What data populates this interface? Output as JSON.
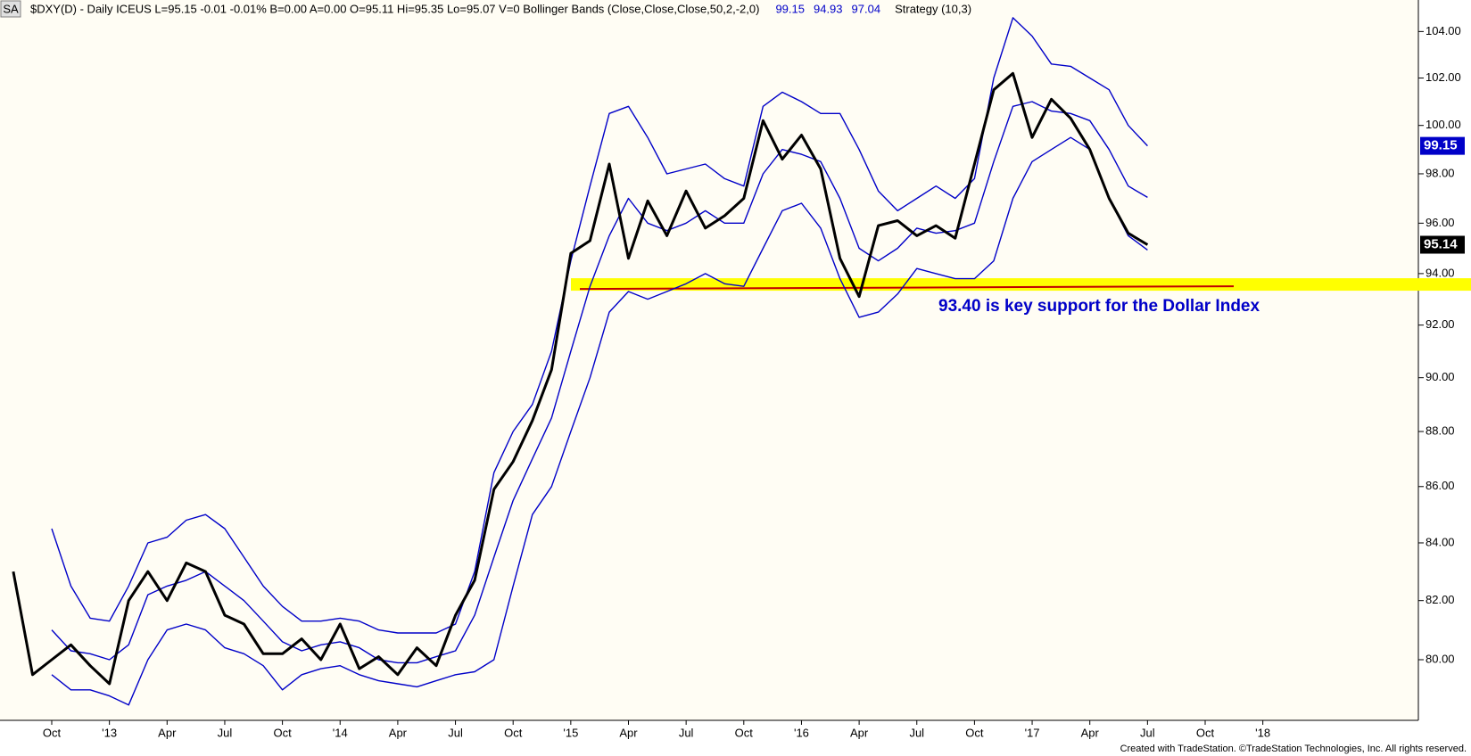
{
  "chart_data": {
    "type": "line",
    "symbol_box": "SA",
    "title": "$DXY(D) - Daily ICEUS  L=95.15  -0.01  -0.01%  B=0.00  A=0.00  O=95.11  Hi=95.35  Lo=95.07  V=0  Bollinger Bands (Close,Close,Close,50,2,-2,0)",
    "strategy": "Strategy (10,3)",
    "footer": "Created with TradeStation. ©TradeStation Technologies, Inc. All rights reserved.",
    "log_scale": true,
    "x": [
      "2012-08",
      "2012-09",
      "2012-10",
      "2012-11",
      "2012-12",
      "2013-01",
      "2013-02",
      "2013-03",
      "2013-04",
      "2013-05",
      "2013-06",
      "2013-07",
      "2013-08",
      "2013-09",
      "2013-10",
      "2013-11",
      "2013-12",
      "2014-01",
      "2014-02",
      "2014-03",
      "2014-04",
      "2014-05",
      "2014-06",
      "2014-07",
      "2014-08",
      "2014-09",
      "2014-10",
      "2014-11",
      "2014-12",
      "2015-01",
      "2015-02",
      "2015-03",
      "2015-04",
      "2015-05",
      "2015-06",
      "2015-07",
      "2015-08",
      "2015-09",
      "2015-10",
      "2015-11",
      "2015-12",
      "2016-01",
      "2016-02",
      "2016-03",
      "2016-04",
      "2016-05",
      "2016-06",
      "2016-07",
      "2016-08",
      "2016-09",
      "2016-10",
      "2016-11",
      "2016-12",
      "2017-01",
      "2017-02",
      "2017-03",
      "2017-04",
      "2017-05",
      "2017-06",
      "2017-07"
    ],
    "series": [
      {
        "name": "Upper",
        "color": "#0000c8",
        "values": [
          null,
          null,
          84.5,
          82.5,
          81.4,
          81.3,
          82.5,
          84.0,
          84.2,
          84.8,
          85.0,
          84.5,
          83.5,
          82.5,
          81.8,
          81.3,
          81.3,
          81.4,
          81.3,
          81.0,
          80.9,
          80.9,
          80.9,
          81.2,
          83.0,
          86.5,
          88.0,
          89.0,
          91.0,
          94.5,
          97.5,
          100.5,
          100.8,
          99.5,
          98.0,
          98.2,
          98.4,
          97.8,
          97.5,
          100.8,
          101.4,
          101.0,
          100.5,
          100.5,
          99.0,
          97.3,
          96.5,
          97.0,
          97.5,
          97.0,
          97.8,
          102.0,
          104.6,
          103.8,
          102.6,
          102.5,
          102.0,
          101.5,
          100.0,
          99.15
        ]
      },
      {
        "name": "Lower",
        "color": "#0000c8",
        "values": [
          null,
          null,
          79.5,
          79.0,
          79.0,
          78.8,
          78.5,
          80.0,
          81.0,
          81.2,
          81.0,
          80.4,
          80.2,
          79.8,
          79.0,
          79.5,
          79.7,
          79.8,
          79.5,
          79.3,
          79.2,
          79.1,
          79.3,
          79.5,
          79.6,
          80.0,
          82.5,
          85.0,
          86.0,
          88.0,
          90.0,
          92.5,
          93.3,
          93.0,
          93.3,
          93.6,
          94.0,
          93.6,
          93.5,
          95.0,
          96.5,
          96.8,
          95.8,
          93.8,
          92.3,
          92.5,
          93.2,
          94.2,
          94.0,
          93.8,
          93.8,
          94.5,
          97.0,
          98.5,
          99.0,
          99.5,
          99.0,
          97.0,
          95.5,
          94.93
        ]
      },
      {
        "name": "Mid",
        "color": "#0000c8",
        "values": [
          null,
          null,
          81.0,
          80.3,
          80.2,
          80.0,
          80.5,
          82.2,
          82.5,
          82.7,
          83.0,
          82.5,
          82.0,
          81.3,
          80.6,
          80.3,
          80.5,
          80.6,
          80.4,
          80.0,
          79.9,
          79.9,
          80.1,
          80.3,
          81.5,
          83.5,
          85.5,
          87.0,
          88.5,
          91.0,
          93.5,
          95.5,
          97.0,
          96.0,
          95.7,
          96.0,
          96.5,
          96.0,
          96.0,
          98.0,
          99.0,
          98.8,
          98.5,
          97.0,
          95.0,
          94.5,
          95.0,
          95.8,
          95.6,
          95.7,
          96.0,
          98.5,
          100.8,
          101.0,
          100.6,
          100.5,
          100.2,
          99.0,
          97.5,
          97.04
        ]
      },
      {
        "name": "$DXY",
        "color": "#000000",
        "values": [
          83.0,
          79.5,
          80.0,
          80.5,
          79.8,
          79.2,
          82.0,
          83.0,
          82.0,
          83.3,
          83.0,
          81.5,
          81.2,
          80.2,
          80.2,
          80.7,
          80.0,
          81.2,
          79.7,
          80.1,
          79.5,
          80.4,
          79.8,
          81.5,
          82.7,
          85.9,
          86.9,
          88.4,
          90.3,
          94.8,
          95.3,
          98.4,
          94.6,
          96.9,
          95.5,
          97.3,
          95.8,
          96.3,
          97.0,
          100.2,
          98.6,
          99.6,
          98.2,
          94.6,
          93.1,
          95.9,
          96.1,
          95.5,
          95.9,
          95.4,
          98.4,
          101.5,
          102.2,
          99.5,
          101.1,
          100.3,
          99.0,
          97.0,
          95.6,
          95.14
        ]
      }
    ],
    "support": {
      "value": 93.4,
      "label": "93.40 is key support for the Dollar Index",
      "color": "#c00000",
      "highlight": "#ffff00"
    },
    "ylim": [
      78.0,
      105.3
    ],
    "yticks": [
      {
        "value": 80,
        "label": "80.00"
      },
      {
        "value": 82,
        "label": "82.00"
      },
      {
        "value": 84,
        "label": "84.00"
      },
      {
        "value": 86,
        "label": "86.00"
      },
      {
        "value": 88,
        "label": "88.00"
      },
      {
        "value": 90,
        "label": "90.00"
      },
      {
        "value": 92,
        "label": "92.00"
      },
      {
        "value": 94,
        "label": "94.00"
      },
      {
        "value": 96,
        "label": "96.00"
      },
      {
        "value": 98,
        "label": "98.00"
      },
      {
        "value": 100,
        "label": "100.00"
      },
      {
        "value": 102,
        "label": "102.00"
      },
      {
        "value": 104,
        "label": "104.00"
      }
    ],
    "xticks": [
      {
        "value": "2012-10",
        "label": "Oct"
      },
      {
        "value": "2013-01",
        "label": "'13"
      },
      {
        "value": "2013-04",
        "label": "Apr"
      },
      {
        "value": "2013-07",
        "label": "Jul"
      },
      {
        "value": "2013-10",
        "label": "Oct"
      },
      {
        "value": "2014-01",
        "label": "'14"
      },
      {
        "value": "2014-04",
        "label": "Apr"
      },
      {
        "value": "2014-07",
        "label": "Jul"
      },
      {
        "value": "2014-10",
        "label": "Oct"
      },
      {
        "value": "2015-01",
        "label": "'15"
      },
      {
        "value": "2015-04",
        "label": "Apr"
      },
      {
        "value": "2015-07",
        "label": "Jul"
      },
      {
        "value": "2015-10",
        "label": "Oct"
      },
      {
        "value": "2016-01",
        "label": "'16"
      },
      {
        "value": "2016-04",
        "label": "Apr"
      },
      {
        "value": "2016-07",
        "label": "Jul"
      },
      {
        "value": "2016-10",
        "label": "Oct"
      },
      {
        "value": "2017-01",
        "label": "'17"
      },
      {
        "value": "2017-04",
        "label": "Apr"
      },
      {
        "value": "2017-07",
        "label": "Jul"
      },
      {
        "value": "2017-10",
        "label": "Oct"
      },
      {
        "value": "2018-01",
        "label": "'18"
      }
    ],
    "grid": false
  }
}
